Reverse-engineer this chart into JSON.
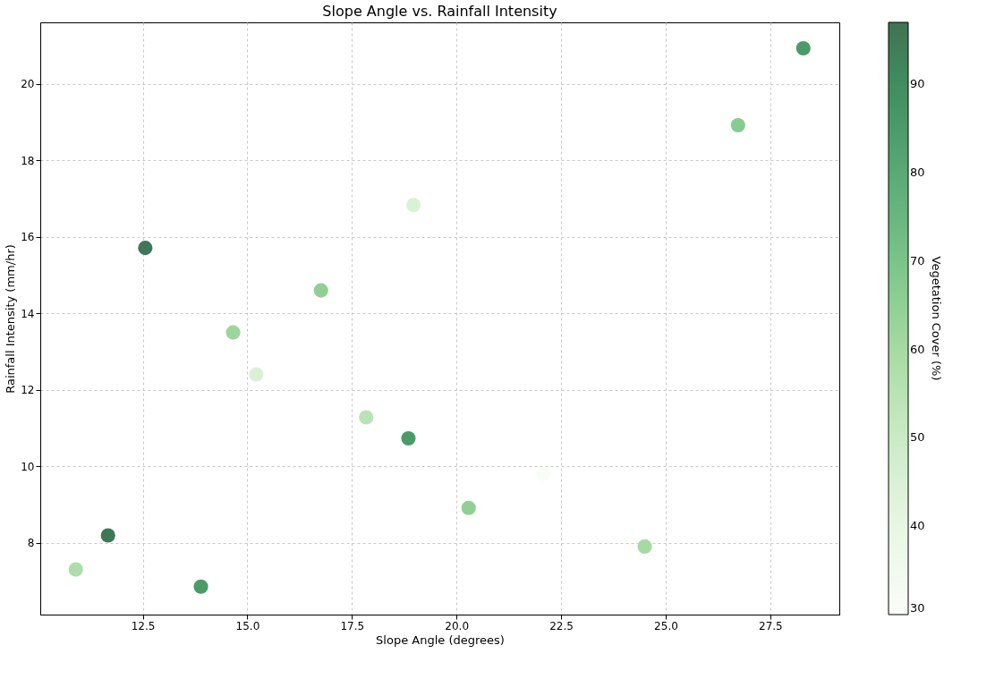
{
  "chart_data": {
    "type": "scatter",
    "title": "Slope Angle vs. Rainfall Intensity",
    "xlabel": "Slope Angle (degrees)",
    "ylabel": "Rainfall Intensity (mm/hr)",
    "clabel": "Vegetation Cover (%)",
    "x": [
      10.9,
      11.67,
      12.56,
      13.89,
      14.66,
      15.21,
      16.76,
      17.84,
      18.97,
      18.85,
      20.29,
      22.08,
      24.5,
      26.73,
      28.29
    ],
    "values": [
      7.3,
      8.19,
      15.71,
      6.85,
      13.5,
      12.4,
      14.6,
      11.28,
      16.83,
      10.73,
      8.91,
      9.8,
      7.9,
      18.92,
      20.93
    ],
    "cvalues": [
      58,
      96,
      96,
      85,
      62,
      45,
      65,
      55,
      45,
      85,
      65,
      30,
      60,
      67,
      85
    ],
    "xlim": [
      10.05,
      29.15
    ],
    "xticks": [
      {
        "value": 12.5,
        "label": "12.5"
      },
      {
        "value": 15,
        "label": "15.0"
      },
      {
        "value": 17.5,
        "label": "17.5"
      },
      {
        "value": 20,
        "label": "20.0"
      },
      {
        "value": 22.5,
        "label": "22.5"
      },
      {
        "value": 25,
        "label": "25.0"
      },
      {
        "value": 27.5,
        "label": "27.5"
      }
    ],
    "ylim": [
      6.12,
      21.61
    ],
    "yticks": [
      8,
      10,
      12,
      14,
      16,
      18,
      20
    ],
    "clim": [
      30,
      97
    ],
    "cticks": [
      30,
      40,
      50,
      60,
      70,
      80,
      90
    ],
    "grid": true,
    "marker": "circle"
  }
}
